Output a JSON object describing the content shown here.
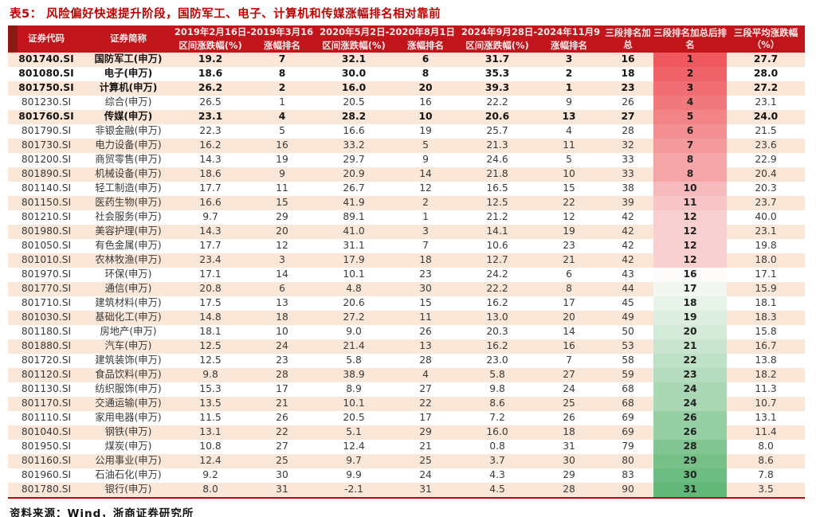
{
  "page": {
    "title": "表5：  风险偏好快速提升阶段，国防军工、电子、计算机和传媒涨幅排名相对靠前",
    "source": "资料来源：Wind，浙商证券研究所"
  },
  "chart_data": {
    "type": "table",
    "title": "表5：风险偏好快速提升阶段，国防军工、电子、计算机和传媒涨幅排名相对靠前",
    "headers": {
      "code": "证券代码",
      "name": "证券简称",
      "periods": [
        {
          "label": "2019年2月16日-2019年3月16",
          "change": "区间涨跌幅(%)",
          "rank": "涨幅排名"
        },
        {
          "label": "2020年5月2日-2020年8月1日",
          "change": "区间涨跌幅(%)",
          "rank": "涨幅排名"
        },
        {
          "label": "2024年9月28日-2024年11月9",
          "change": "区间涨跌幅(%)",
          "rank": "涨幅排名"
        }
      ],
      "rank_sum": "三段排名加总",
      "final_rank": "三段排名加总后排名",
      "avg_change": "三段平均涨跌幅（%）"
    },
    "rows": [
      {
        "code": "801740.SI",
        "name": "国防军工(申万)",
        "chg1": "19.2",
        "rank1": "7",
        "chg2": "32.1",
        "rank2": "6",
        "chg3": "31.7",
        "rank3": "3",
        "rank_sum": "16",
        "final_rank": "1",
        "avg": "27.7",
        "bold": true
      },
      {
        "code": "801080.SI",
        "name": "电子(申万)",
        "chg1": "18.6",
        "rank1": "8",
        "chg2": "30.0",
        "rank2": "8",
        "chg3": "35.3",
        "rank3": "2",
        "rank_sum": "18",
        "final_rank": "2",
        "avg": "28.0",
        "bold": true
      },
      {
        "code": "801750.SI",
        "name": "计算机(申万)",
        "chg1": "26.2",
        "rank1": "2",
        "chg2": "16.0",
        "rank2": "20",
        "chg3": "39.3",
        "rank3": "1",
        "rank_sum": "23",
        "final_rank": "3",
        "avg": "27.2",
        "bold": true
      },
      {
        "code": "801230.SI",
        "name": "综合(申万)",
        "chg1": "26.5",
        "rank1": "1",
        "chg2": "20.5",
        "rank2": "16",
        "chg3": "22.2",
        "rank3": "9",
        "rank_sum": "26",
        "final_rank": "4",
        "avg": "23.1",
        "bold": false
      },
      {
        "code": "801760.SI",
        "name": "传媒(申万)",
        "chg1": "23.1",
        "rank1": "4",
        "chg2": "28.2",
        "rank2": "10",
        "chg3": "20.6",
        "rank3": "13",
        "rank_sum": "27",
        "final_rank": "5",
        "avg": "24.0",
        "bold": true
      },
      {
        "code": "801790.SI",
        "name": "非银金融(申万)",
        "chg1": "22.3",
        "rank1": "5",
        "chg2": "16.6",
        "rank2": "19",
        "chg3": "25.7",
        "rank3": "4",
        "rank_sum": "28",
        "final_rank": "6",
        "avg": "21.5",
        "bold": false
      },
      {
        "code": "801730.SI",
        "name": "电力设备(申万)",
        "chg1": "16.2",
        "rank1": "16",
        "chg2": "33.2",
        "rank2": "5",
        "chg3": "21.3",
        "rank3": "11",
        "rank_sum": "32",
        "final_rank": "7",
        "avg": "23.6",
        "bold": false
      },
      {
        "code": "801200.SI",
        "name": "商贸零售(申万)",
        "chg1": "14.3",
        "rank1": "19",
        "chg2": "29.7",
        "rank2": "9",
        "chg3": "24.6",
        "rank3": "5",
        "rank_sum": "33",
        "final_rank": "8",
        "avg": "22.9",
        "bold": false
      },
      {
        "code": "801890.SI",
        "name": "机械设备(申万)",
        "chg1": "18.6",
        "rank1": "9",
        "chg2": "20.9",
        "rank2": "14",
        "chg3": "21.8",
        "rank3": "10",
        "rank_sum": "33",
        "final_rank": "8",
        "avg": "20.4",
        "bold": false
      },
      {
        "code": "801140.SI",
        "name": "轻工制造(申万)",
        "chg1": "17.7",
        "rank1": "11",
        "chg2": "26.7",
        "rank2": "12",
        "chg3": "16.5",
        "rank3": "15",
        "rank_sum": "38",
        "final_rank": "10",
        "avg": "20.3",
        "bold": false
      },
      {
        "code": "801150.SI",
        "name": "医药生物(申万)",
        "chg1": "16.6",
        "rank1": "15",
        "chg2": "41.9",
        "rank2": "2",
        "chg3": "12.5",
        "rank3": "22",
        "rank_sum": "39",
        "final_rank": "11",
        "avg": "23.7",
        "bold": false
      },
      {
        "code": "801210.SI",
        "name": "社会服务(申万)",
        "chg1": "9.7",
        "rank1": "29",
        "chg2": "89.1",
        "rank2": "1",
        "chg3": "21.2",
        "rank3": "12",
        "rank_sum": "42",
        "final_rank": "12",
        "avg": "40.0",
        "bold": false
      },
      {
        "code": "801980.SI",
        "name": "美容护理(申万)",
        "chg1": "14.3",
        "rank1": "20",
        "chg2": "41.0",
        "rank2": "3",
        "chg3": "14.1",
        "rank3": "19",
        "rank_sum": "42",
        "final_rank": "12",
        "avg": "23.1",
        "bold": false
      },
      {
        "code": "801050.SI",
        "name": "有色金属(申万)",
        "chg1": "17.7",
        "rank1": "12",
        "chg2": "31.1",
        "rank2": "7",
        "chg3": "10.6",
        "rank3": "23",
        "rank_sum": "42",
        "final_rank": "12",
        "avg": "19.8",
        "bold": false
      },
      {
        "code": "801010.SI",
        "name": "农林牧渔(申万)",
        "chg1": "23.4",
        "rank1": "3",
        "chg2": "17.9",
        "rank2": "18",
        "chg3": "12.7",
        "rank3": "21",
        "rank_sum": "42",
        "final_rank": "12",
        "avg": "18.0",
        "bold": false
      },
      {
        "code": "801970.SI",
        "name": "环保(申万)",
        "chg1": "17.1",
        "rank1": "14",
        "chg2": "10.1",
        "rank2": "23",
        "chg3": "24.2",
        "rank3": "6",
        "rank_sum": "43",
        "final_rank": "16",
        "avg": "17.1",
        "bold": false
      },
      {
        "code": "801770.SI",
        "name": "通信(申万)",
        "chg1": "20.8",
        "rank1": "6",
        "chg2": "4.8",
        "rank2": "30",
        "chg3": "22.2",
        "rank3": "8",
        "rank_sum": "44",
        "final_rank": "17",
        "avg": "15.9",
        "bold": false
      },
      {
        "code": "801710.SI",
        "name": "建筑材料(申万)",
        "chg1": "17.5",
        "rank1": "13",
        "chg2": "20.6",
        "rank2": "15",
        "chg3": "16.2",
        "rank3": "17",
        "rank_sum": "45",
        "final_rank": "18",
        "avg": "18.1",
        "bold": false
      },
      {
        "code": "801030.SI",
        "name": "基础化工(申万)",
        "chg1": "14.8",
        "rank1": "18",
        "chg2": "27.2",
        "rank2": "11",
        "chg3": "13.0",
        "rank3": "20",
        "rank_sum": "49",
        "final_rank": "19",
        "avg": "18.3",
        "bold": false
      },
      {
        "code": "801180.SI",
        "name": "房地产(申万)",
        "chg1": "18.1",
        "rank1": "10",
        "chg2": "9.0",
        "rank2": "26",
        "chg3": "20.3",
        "rank3": "14",
        "rank_sum": "50",
        "final_rank": "20",
        "avg": "15.8",
        "bold": false
      },
      {
        "code": "801880.SI",
        "name": "汽车(申万)",
        "chg1": "12.5",
        "rank1": "24",
        "chg2": "21.4",
        "rank2": "13",
        "chg3": "16.2",
        "rank3": "16",
        "rank_sum": "53",
        "final_rank": "21",
        "avg": "16.7",
        "bold": false
      },
      {
        "code": "801720.SI",
        "name": "建筑装饰(申万)",
        "chg1": "12.5",
        "rank1": "23",
        "chg2": "5.8",
        "rank2": "28",
        "chg3": "23.0",
        "rank3": "7",
        "rank_sum": "58",
        "final_rank": "22",
        "avg": "13.8",
        "bold": false
      },
      {
        "code": "801120.SI",
        "name": "食品饮料(申万)",
        "chg1": "9.8",
        "rank1": "28",
        "chg2": "38.9",
        "rank2": "4",
        "chg3": "5.8",
        "rank3": "27",
        "rank_sum": "59",
        "final_rank": "23",
        "avg": "18.2",
        "bold": false
      },
      {
        "code": "801130.SI",
        "name": "纺织服饰(申万)",
        "chg1": "15.3",
        "rank1": "17",
        "chg2": "8.9",
        "rank2": "27",
        "chg3": "9.8",
        "rank3": "24",
        "rank_sum": "68",
        "final_rank": "24",
        "avg": "11.3",
        "bold": false
      },
      {
        "code": "801170.SI",
        "name": "交通运输(申万)",
        "chg1": "13.5",
        "rank1": "21",
        "chg2": "10.1",
        "rank2": "22",
        "chg3": "8.6",
        "rank3": "25",
        "rank_sum": "68",
        "final_rank": "24",
        "avg": "10.7",
        "bold": false
      },
      {
        "code": "801110.SI",
        "name": "家用电器(申万)",
        "chg1": "11.5",
        "rank1": "26",
        "chg2": "20.5",
        "rank2": "17",
        "chg3": "7.2",
        "rank3": "26",
        "rank_sum": "69",
        "final_rank": "26",
        "avg": "13.1",
        "bold": false
      },
      {
        "code": "801040.SI",
        "name": "钢铁(申万)",
        "chg1": "13.1",
        "rank1": "22",
        "chg2": "5.1",
        "rank2": "29",
        "chg3": "16.0",
        "rank3": "18",
        "rank_sum": "69",
        "final_rank": "26",
        "avg": "11.4",
        "bold": false
      },
      {
        "code": "801950.SI",
        "name": "煤炭(申万)",
        "chg1": "10.8",
        "rank1": "27",
        "chg2": "12.4",
        "rank2": "21",
        "chg3": "0.8",
        "rank3": "31",
        "rank_sum": "79",
        "final_rank": "28",
        "avg": "8.0",
        "bold": false
      },
      {
        "code": "801160.SI",
        "name": "公用事业(申万)",
        "chg1": "12.4",
        "rank1": "25",
        "chg2": "9.7",
        "rank2": "25",
        "chg3": "3.7",
        "rank3": "30",
        "rank_sum": "80",
        "final_rank": "29",
        "avg": "8.6",
        "bold": false
      },
      {
        "code": "801960.SI",
        "name": "石油石化(申万)",
        "chg1": "9.2",
        "rank1": "30",
        "chg2": "9.9",
        "rank2": "24",
        "chg3": "4.3",
        "rank3": "29",
        "rank_sum": "83",
        "final_rank": "30",
        "avg": "7.8",
        "bold": false
      },
      {
        "code": "801780.SI",
        "name": "银行(申万)",
        "chg1": "8.0",
        "rank1": "31",
        "chg2": "-2.1",
        "rank2": "31",
        "chg3": "4.5",
        "rank3": "28",
        "rank_sum": "90",
        "final_rank": "31",
        "avg": "3.5",
        "bold": false
      }
    ]
  },
  "colors": {
    "title_red": "#c00000",
    "header_bg": "#c1151b",
    "header_accent": "#8c1a12",
    "header_text": "#ffe9e9",
    "row_stripe": "#fbe7d8",
    "rank_scale_high": "#ee585e",
    "rank_scale_mid": "#fdfcfb",
    "rank_scale_low": "#62b878",
    "bottom_border": "#c00000"
  }
}
